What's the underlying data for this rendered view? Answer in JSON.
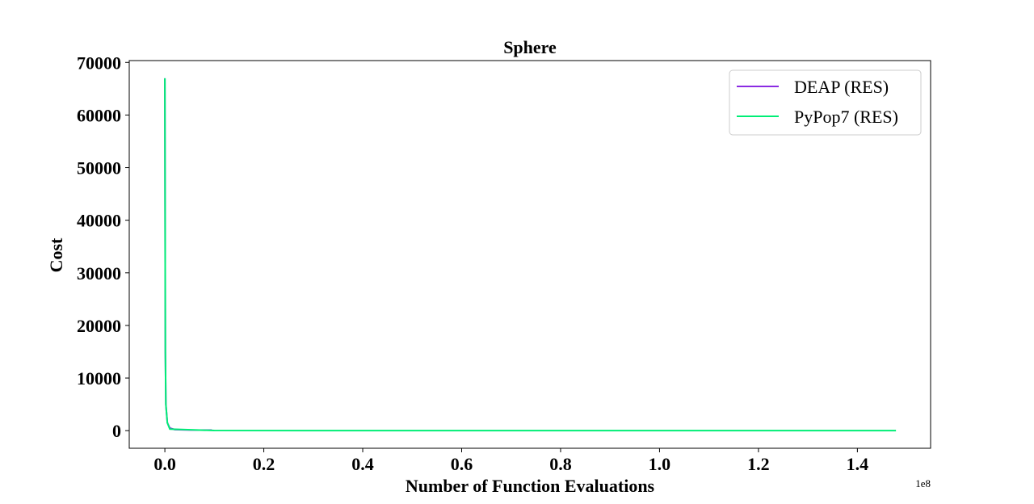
{
  "chart_data": {
    "type": "line",
    "title": "Sphere",
    "xlabel": "Number of Function Evaluations",
    "ylabel": "Cost",
    "x_offset_label": "1e8",
    "xlim": [
      -0.072,
      1.548
    ],
    "ylim": [
      -3350,
      70350
    ],
    "x_ticks": [
      0.0,
      0.2,
      0.4,
      0.6,
      0.8,
      1.0,
      1.2,
      1.4
    ],
    "x_tick_labels": [
      "0.0",
      "0.2",
      "0.4",
      "0.6",
      "0.8",
      "1.0",
      "1.2",
      "1.4"
    ],
    "y_ticks": [
      0,
      10000,
      20000,
      30000,
      40000,
      50000,
      60000,
      70000
    ],
    "y_tick_labels": [
      "0",
      "10000",
      "20000",
      "30000",
      "40000",
      "50000",
      "60000",
      "70000"
    ],
    "grid": false,
    "legend_position": "top-right",
    "series": [
      {
        "name": "DEAP (RES)",
        "color": "#8a2be2",
        "x": [
          0.0,
          0.0005,
          0.001,
          0.002,
          0.005,
          0.01,
          0.02,
          0.05,
          0.095
        ],
        "y": [
          67000,
          40000,
          15000,
          5000,
          1500,
          500,
          200,
          120,
          100
        ]
      },
      {
        "name": "PyPop7 (RES)",
        "color": "#00ee76",
        "x": [
          0.0,
          0.0005,
          0.001,
          0.002,
          0.005,
          0.01,
          0.1,
          0.5,
          1.0,
          1.478
        ],
        "y": [
          67000,
          40000,
          15000,
          5000,
          1500,
          300,
          20,
          1,
          0,
          0
        ]
      }
    ]
  }
}
